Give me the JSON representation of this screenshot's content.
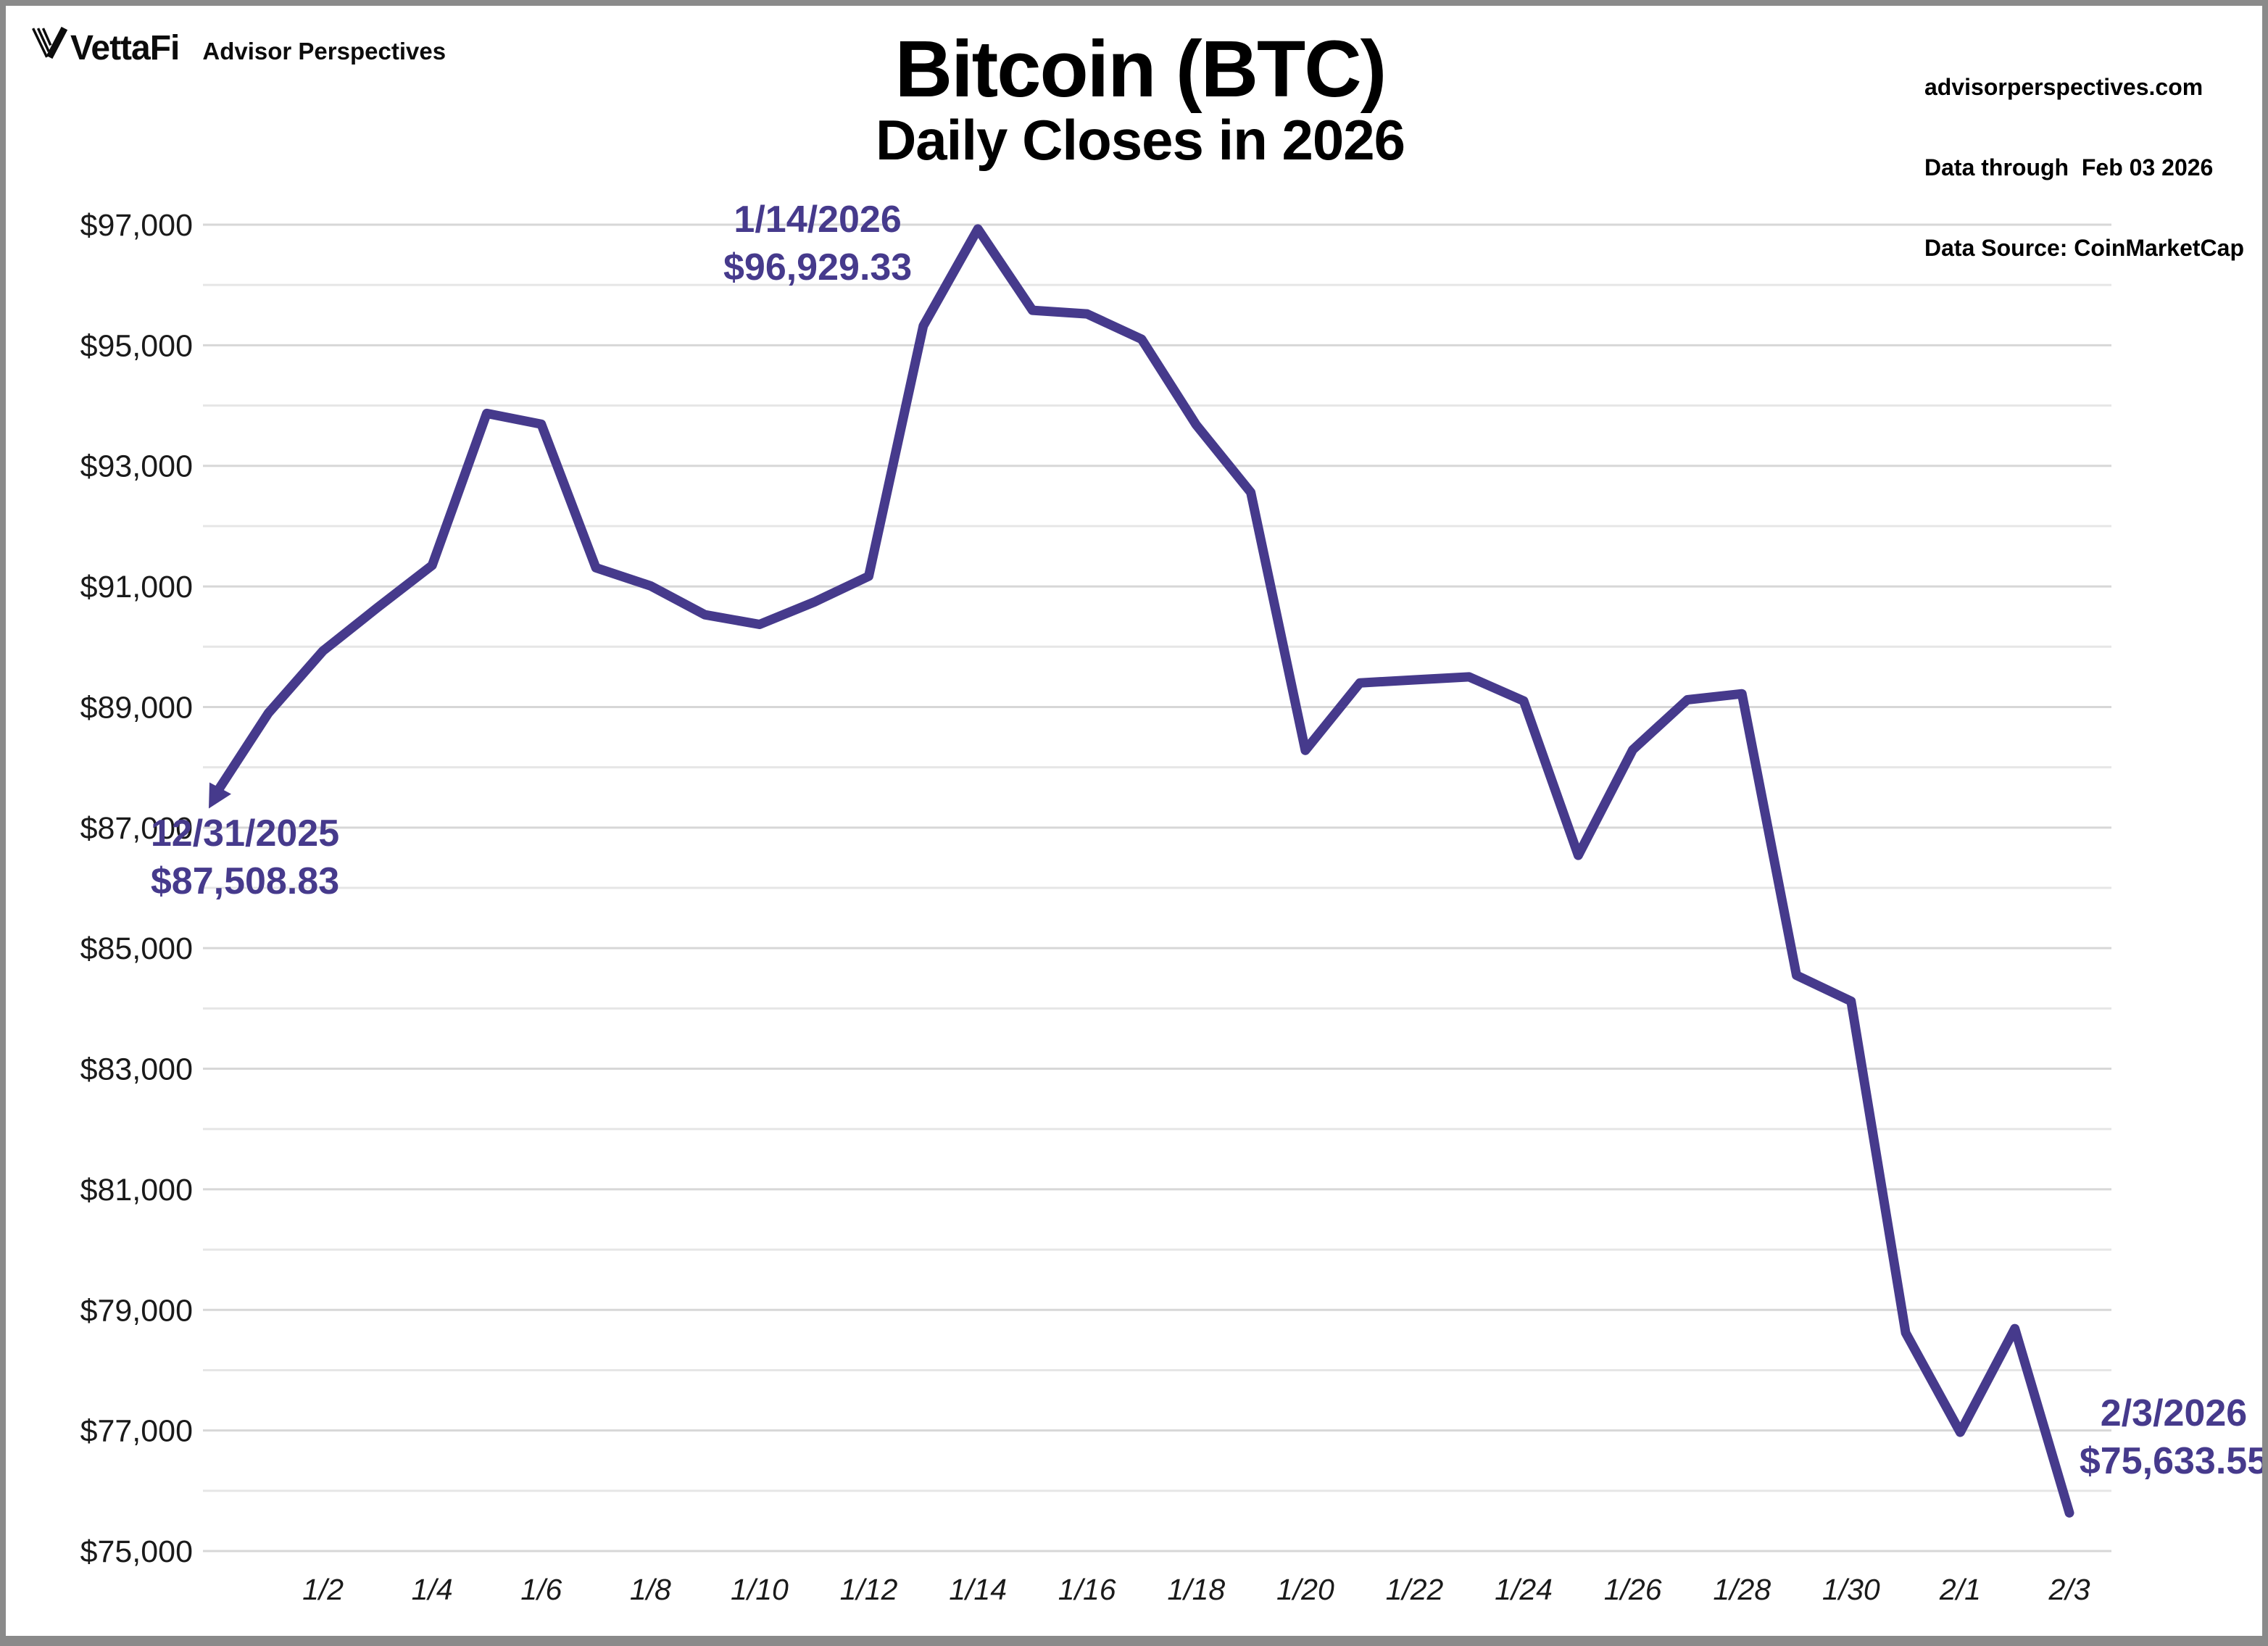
{
  "header": {
    "logo_brand": "VettaFi",
    "logo_tagline": "Advisor Perspectives",
    "title": "Bitcoin (BTC)",
    "subtitle": "Daily Closes in 2026"
  },
  "source_block": {
    "website": "advisorperspectives.com",
    "data_through": "Data through  Feb 03 2026",
    "data_source": "Data Source: CoinMarketCap"
  },
  "annotations": {
    "start": {
      "date": "12/31/2025",
      "value": "$87,508.83"
    },
    "peak": {
      "date": "1/14/2026",
      "value": "$96,929.33"
    },
    "end": {
      "date": "2/3/2026",
      "value": "$75,633.55"
    }
  },
  "colors": {
    "line": "#463A8C",
    "annotation_text": "#463A8C",
    "grid_major": "#d7d7d7",
    "grid_minor": "#e6e6e6",
    "axis_text": "#1a1a1a",
    "frame": "#8a8a8a",
    "background": "#ffffff"
  },
  "chart_data": {
    "type": "line",
    "title": "Bitcoin (BTC)",
    "subtitle": "Daily Closes in 2026",
    "series_name": "BTC daily close (USD)",
    "x": [
      "12/31",
      "1/1",
      "1/2",
      "1/3",
      "1/4",
      "1/5",
      "1/6",
      "1/7",
      "1/8",
      "1/9",
      "1/10",
      "1/11",
      "1/12",
      "1/13",
      "1/14",
      "1/15",
      "1/16",
      "1/17",
      "1/18",
      "1/19",
      "1/20",
      "1/21",
      "1/22",
      "1/23",
      "1/24",
      "1/25",
      "1/26",
      "1/27",
      "1/28",
      "1/29",
      "1/30",
      "1/31",
      "2/1",
      "2/2",
      "2/3"
    ],
    "values": [
      87508.83,
      88900,
      89930,
      90650,
      91350,
      93870,
      93690,
      91310,
      91010,
      90530,
      90370,
      90740,
      91170,
      95320,
      96929.33,
      95580,
      95520,
      95100,
      93680,
      92560,
      88280,
      89400,
      89450,
      89500,
      89100,
      86540,
      88290,
      89120,
      89220,
      84550,
      84120,
      78620,
      76970,
      78690,
      75633.55
    ],
    "ylim": [
      75000,
      97000
    ],
    "y_label_step": 2000,
    "gridline_step": 1000,
    "y_tick_prefix": "$",
    "x_tick_labels": [
      "1/2",
      "1/4",
      "1/6",
      "1/8",
      "1/10",
      "1/12",
      "1/14",
      "1/16",
      "1/18",
      "1/20",
      "1/22",
      "1/24",
      "1/26",
      "1/28",
      "1/30",
      "2/1",
      "2/3"
    ],
    "grid": "horizontal-only",
    "legend": "none"
  }
}
